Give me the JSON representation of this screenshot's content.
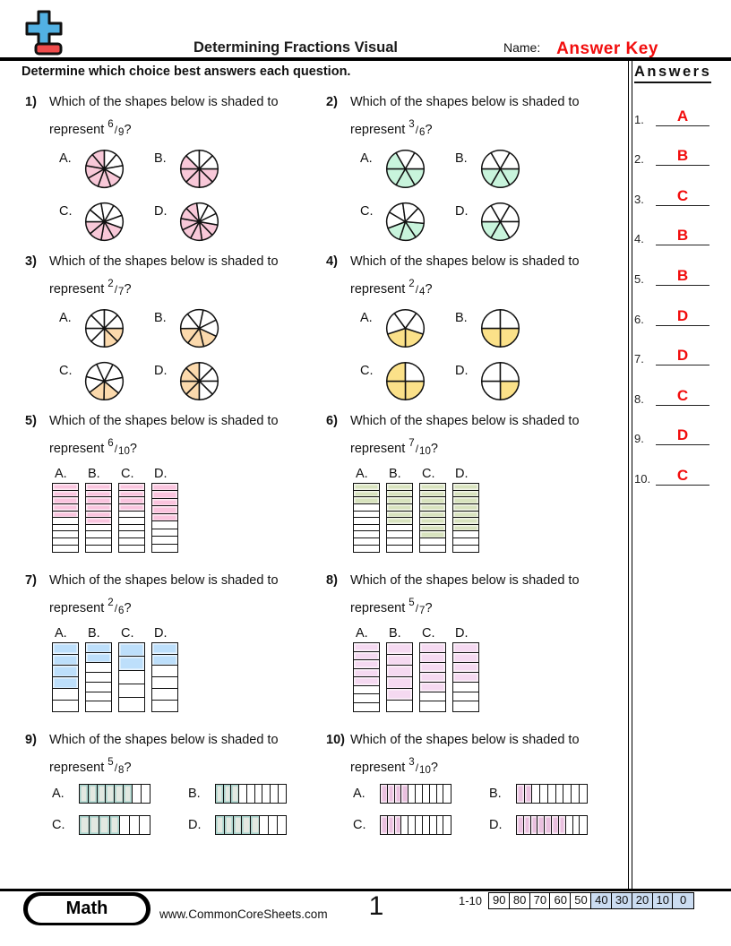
{
  "header": {
    "title": "Determining Fractions Visual",
    "name_label": "Name:",
    "name_value": "Answer Key",
    "instruction": "Determine which choice best answers each question.",
    "accent_red": "#F20D0D",
    "logo": {
      "plus_icon_color": "#52B1E3",
      "minus_icon_color": "#EF4B4B"
    }
  },
  "answers_panel": {
    "title": "Answers",
    "items": [
      {
        "num": "1.",
        "letter": "A"
      },
      {
        "num": "2.",
        "letter": "B"
      },
      {
        "num": "3.",
        "letter": "C"
      },
      {
        "num": "4.",
        "letter": "B"
      },
      {
        "num": "5.",
        "letter": "B"
      },
      {
        "num": "6.",
        "letter": "D"
      },
      {
        "num": "7.",
        "letter": "D"
      },
      {
        "num": "8.",
        "letter": "C"
      },
      {
        "num": "9.",
        "letter": "D"
      },
      {
        "num": "10.",
        "letter": "C"
      }
    ]
  },
  "fraction_separator": "/",
  "questions": [
    {
      "num": "1)",
      "line1": "Which of the shapes below is shaded to",
      "line2_prefix": "represent",
      "numerator": "6",
      "denominator": "9",
      "suffix": "?",
      "type": "pie",
      "color": "#F8C8D8",
      "choices": [
        {
          "label": "A.",
          "slices": 9,
          "shaded": 6,
          "start": 120
        },
        {
          "label": "B.",
          "slices": 8,
          "shaded": 5,
          "start": 90
        },
        {
          "label": "C.",
          "slices": 9,
          "shaded": 4,
          "start": 110
        },
        {
          "label": "D.",
          "slices": 10,
          "shaded": 7,
          "start": 100
        }
      ]
    },
    {
      "num": "2)",
      "line1": "Which of the shapes below is shaded to",
      "line2_prefix": "represent",
      "numerator": "3",
      "denominator": "6",
      "suffix": "?",
      "type": "pie",
      "color": "#C8F4DC",
      "choices": [
        {
          "label": "A.",
          "slices": 6,
          "shaded": 4,
          "start": 90
        },
        {
          "label": "B.",
          "slices": 6,
          "shaded": 3,
          "start": 90
        },
        {
          "label": "C.",
          "slices": 7,
          "shaded": 3,
          "start": 95
        },
        {
          "label": "D.",
          "slices": 6,
          "shaded": 2,
          "start": 150
        }
      ]
    },
    {
      "num": "3)",
      "line1": "Which of the shapes below is shaded to",
      "line2_prefix": "represent",
      "numerator": "2",
      "denominator": "7",
      "suffix": "?",
      "type": "pie",
      "color": "#FBD9AC",
      "choices": [
        {
          "label": "A.",
          "slices": 8,
          "shaded": 2,
          "start": 90
        },
        {
          "label": "B.",
          "slices": 7,
          "shaded": 3,
          "start": 115
        },
        {
          "label": "C.",
          "slices": 7,
          "shaded": 2,
          "start": 130
        },
        {
          "label": "D.",
          "slices": 8,
          "shaded": 4,
          "start": 180
        }
      ]
    },
    {
      "num": "4)",
      "line1": "Which of the shapes below is shaded to",
      "line2_prefix": "represent",
      "numerator": "2",
      "denominator": "4",
      "suffix": "?",
      "type": "pie",
      "color": "#FBE189",
      "choices": [
        {
          "label": "A.",
          "slices": 5,
          "shaded": 2,
          "start": 108
        },
        {
          "label": "B.",
          "slices": 4,
          "shaded": 2,
          "start": 90
        },
        {
          "label": "C.",
          "slices": 4,
          "shaded": 3,
          "start": 90
        },
        {
          "label": "D.",
          "slices": 4,
          "shaded": 1,
          "start": 90
        }
      ]
    },
    {
      "num": "5)",
      "line1": "Which of the shapes below is shaded to",
      "line2_prefix": "represent",
      "numerator": "6",
      "denominator": "10",
      "suffix": "?",
      "type": "vbar",
      "color": "#FAC4DE",
      "choices": [
        {
          "label": "A.",
          "cells": 10,
          "shaded": 5
        },
        {
          "label": "B.",
          "cells": 10,
          "shaded": 6
        },
        {
          "label": "C.",
          "cells": 10,
          "shaded": 4
        },
        {
          "label": "D.",
          "cells": 9,
          "shaded": 5
        }
      ]
    },
    {
      "num": "6)",
      "line1": "Which of the shapes below is shaded to",
      "line2_prefix": "represent",
      "numerator": "7",
      "denominator": "10",
      "suffix": "?",
      "type": "vbar",
      "color": "#D8E3BE",
      "choices": [
        {
          "label": "A.",
          "cells": 10,
          "shaded": 3
        },
        {
          "label": "B.",
          "cells": 10,
          "shaded": 6
        },
        {
          "label": "C.",
          "cells": 10,
          "shaded": 8
        },
        {
          "label": "D.",
          "cells": 10,
          "shaded": 7
        }
      ]
    },
    {
      "num": "7)",
      "line1": "Which of the shapes below is shaded to",
      "line2_prefix": "represent",
      "numerator": "2",
      "denominator": "6",
      "suffix": "?",
      "type": "vbar",
      "color": "#BDDFFB",
      "choices": [
        {
          "label": "A.",
          "cells": 6,
          "shaded": 4
        },
        {
          "label": "B.",
          "cells": 7,
          "shaded": 2
        },
        {
          "label": "C.",
          "cells": 5,
          "shaded": 2
        },
        {
          "label": "D.",
          "cells": 6,
          "shaded": 2
        }
      ]
    },
    {
      "num": "8)",
      "line1": "Which of the shapes below is shaded to",
      "line2_prefix": "represent",
      "numerator": "5",
      "denominator": "7",
      "suffix": "?",
      "type": "vbar",
      "color": "#F5D9F1",
      "choices": [
        {
          "label": "A.",
          "cells": 8,
          "shaded": 5
        },
        {
          "label": "B.",
          "cells": 6,
          "shaded": 5
        },
        {
          "label": "C.",
          "cells": 7,
          "shaded": 5
        },
        {
          "label": "D.",
          "cells": 7,
          "shaded": 4
        }
      ]
    },
    {
      "num": "9)",
      "line1": "Which of the shapes below is shaded to",
      "line2_prefix": "represent",
      "numerator": "5",
      "denominator": "8",
      "suffix": "?",
      "type": "hbar",
      "color": "#E3E8E1",
      "inner": "#A9D3CC",
      "choices": [
        {
          "label": "A.",
          "cells": 8,
          "shaded": 6
        },
        {
          "label": "B.",
          "cells": 9,
          "shaded": 3
        },
        {
          "label": "C.",
          "cells": 7,
          "shaded": 4
        },
        {
          "label": "D.",
          "cells": 8,
          "shaded": 5
        }
      ]
    },
    {
      "num": "10)",
      "line1": "Which of the shapes below is shaded to",
      "line2_prefix": "represent",
      "numerator": "3",
      "denominator": "10",
      "suffix": "?",
      "type": "hbar",
      "color": "#EAC0DF",
      "choices": [
        {
          "label": "A.",
          "cells": 10,
          "shaded": 4
        },
        {
          "label": "B.",
          "cells": 9,
          "shaded": 2
        },
        {
          "label": "C.",
          "cells": 10,
          "shaded": 3
        },
        {
          "label": "D.",
          "cells": 10,
          "shaded": 7
        }
      ]
    }
  ],
  "footer": {
    "badge": "Math",
    "site": "www.CommonCoreSheets.com",
    "page": "1",
    "score_label": "1-10",
    "scores": [
      "90",
      "80",
      "70",
      "60",
      "50",
      "40",
      "30",
      "20",
      "10",
      "0"
    ],
    "highlight_from_index": 5,
    "highlight_color": "#CBDCF1"
  }
}
